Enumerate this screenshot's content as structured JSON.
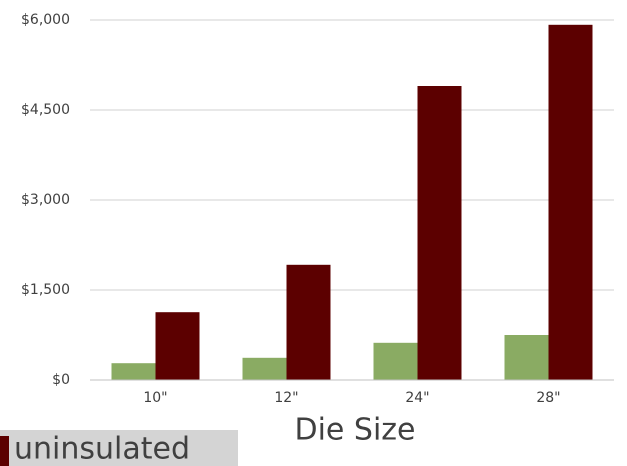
{
  "chart_data": {
    "type": "bar",
    "x_label": "Die Size",
    "categories": [
      "10\"",
      "12\"",
      "24\"",
      "28\""
    ],
    "series": [
      {
        "color": "#8aab63",
        "values": [
          280,
          370,
          620,
          750
        ]
      },
      {
        "name": "uninsulated",
        "color": "#5c0000",
        "values": [
          1130,
          1920,
          4900,
          5920
        ]
      }
    ],
    "ylim": [
      0,
      6000
    ],
    "yticks": [
      {
        "value": 0,
        "label": "$0"
      },
      {
        "value": 1500,
        "label": "$1,500"
      },
      {
        "value": 3000,
        "label": "$3,000"
      },
      {
        "value": 4500,
        "label": "$4,500"
      },
      {
        "value": 6000,
        "label": "$6,000"
      }
    ],
    "grid": true
  }
}
